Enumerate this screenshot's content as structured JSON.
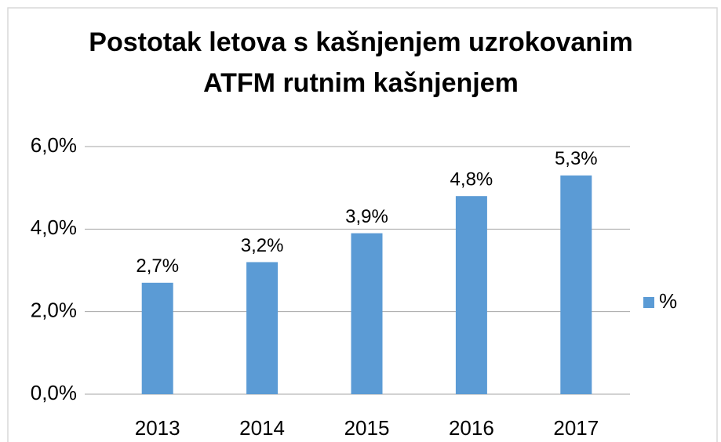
{
  "chart_data": {
    "type": "bar",
    "title": "Postotak letova s kašnjenjem uzrokovanim ATFM rutnim kašnjenjem",
    "categories": [
      "2013",
      "2014",
      "2015",
      "2016",
      "2017"
    ],
    "series": [
      {
        "name": "%",
        "color": "#5b9bd5",
        "values": [
          2.7,
          3.2,
          3.9,
          4.8,
          5.3
        ],
        "value_labels": [
          "2,7%",
          "3,2%",
          "3,9%",
          "4,8%",
          "5,3%"
        ]
      }
    ],
    "ylim": [
      0,
      6
    ],
    "yticks": [
      {
        "value": 0,
        "label": "0,0%"
      },
      {
        "value": 2,
        "label": "2,0%"
      },
      {
        "value": 4,
        "label": "4,0%"
      },
      {
        "value": 6,
        "label": "6,0%"
      }
    ],
    "grid": true,
    "legend": "right"
  }
}
